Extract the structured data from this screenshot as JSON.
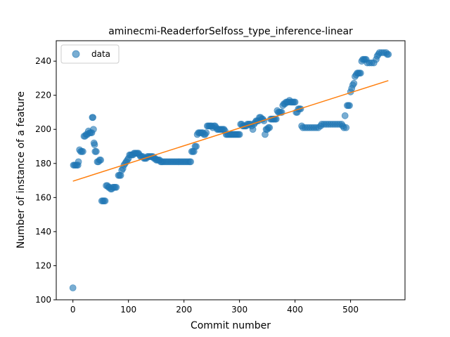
{
  "chart_data": {
    "type": "scatter",
    "title": "aminecmi-ReaderforSelfoss_type_inference-linear",
    "xlabel": "Commit number",
    "ylabel": "Number of instance of a feature",
    "xlim": [
      -30,
      598
    ],
    "ylim": [
      100,
      252
    ],
    "xticks": [
      0,
      100,
      200,
      300,
      400,
      500
    ],
    "yticks": [
      100,
      120,
      140,
      160,
      180,
      200,
      220,
      240
    ],
    "legend": {
      "position": "top-left",
      "entries": [
        "data"
      ]
    },
    "colors": {
      "data": "#1f77b4",
      "fit": "#ff7f0e"
    },
    "series": [
      {
        "name": "data",
        "marker": "circle",
        "alpha": 0.6,
        "points": [
          [
            0,
            107
          ],
          [
            1,
            179
          ],
          [
            3,
            179
          ],
          [
            5,
            179
          ],
          [
            7,
            179
          ],
          [
            9,
            179
          ],
          [
            10,
            181
          ],
          [
            12,
            188
          ],
          [
            14,
            187
          ],
          [
            16,
            187
          ],
          [
            18,
            187
          ],
          [
            20,
            196
          ],
          [
            22,
            196
          ],
          [
            24,
            197
          ],
          [
            26,
            197
          ],
          [
            28,
            199
          ],
          [
            30,
            198
          ],
          [
            32,
            198
          ],
          [
            34,
            198
          ],
          [
            35,
            207
          ],
          [
            36,
            207
          ],
          [
            37,
            200
          ],
          [
            38,
            192
          ],
          [
            39,
            191
          ],
          [
            40,
            187
          ],
          [
            42,
            187
          ],
          [
            44,
            181
          ],
          [
            46,
            181
          ],
          [
            48,
            182
          ],
          [
            50,
            182
          ],
          [
            52,
            158
          ],
          [
            54,
            158
          ],
          [
            56,
            158
          ],
          [
            58,
            158
          ],
          [
            60,
            167
          ],
          [
            62,
            167
          ],
          [
            64,
            166
          ],
          [
            66,
            166
          ],
          [
            68,
            165
          ],
          [
            70,
            165
          ],
          [
            72,
            166
          ],
          [
            74,
            166
          ],
          [
            76,
            166
          ],
          [
            78,
            166
          ],
          [
            82,
            173
          ],
          [
            84,
            173
          ],
          [
            86,
            173
          ],
          [
            88,
            176
          ],
          [
            90,
            177
          ],
          [
            92,
            179
          ],
          [
            94,
            180
          ],
          [
            96,
            181
          ],
          [
            98,
            182
          ],
          [
            100,
            183
          ],
          [
            102,
            185
          ],
          [
            104,
            185
          ],
          [
            106,
            185
          ],
          [
            108,
            185
          ],
          [
            110,
            186
          ],
          [
            112,
            186
          ],
          [
            114,
            186
          ],
          [
            116,
            186
          ],
          [
            118,
            186
          ],
          [
            120,
            185
          ],
          [
            122,
            184
          ],
          [
            124,
            184
          ],
          [
            126,
            184
          ],
          [
            128,
            183
          ],
          [
            130,
            183
          ],
          [
            132,
            183
          ],
          [
            134,
            184
          ],
          [
            136,
            184
          ],
          [
            138,
            184
          ],
          [
            140,
            184
          ],
          [
            142,
            184
          ],
          [
            144,
            184
          ],
          [
            146,
            183
          ],
          [
            148,
            183
          ],
          [
            150,
            182
          ],
          [
            152,
            182
          ],
          [
            154,
            182
          ],
          [
            156,
            182
          ],
          [
            158,
            181
          ],
          [
            160,
            181
          ],
          [
            162,
            181
          ],
          [
            165,
            181
          ],
          [
            168,
            181
          ],
          [
            171,
            181
          ],
          [
            174,
            181
          ],
          [
            177,
            181
          ],
          [
            180,
            181
          ],
          [
            183,
            181
          ],
          [
            186,
            181
          ],
          [
            189,
            181
          ],
          [
            192,
            181
          ],
          [
            195,
            181
          ],
          [
            198,
            181
          ],
          [
            201,
            181
          ],
          [
            204,
            181
          ],
          [
            207,
            181
          ],
          [
            210,
            181
          ],
          [
            212,
            181
          ],
          [
            214,
            187
          ],
          [
            216,
            187
          ],
          [
            218,
            187
          ],
          [
            220,
            190
          ],
          [
            222,
            190
          ],
          [
            224,
            197
          ],
          [
            226,
            198
          ],
          [
            228,
            198
          ],
          [
            230,
            198
          ],
          [
            232,
            198
          ],
          [
            234,
            198
          ],
          [
            236,
            197
          ],
          [
            238,
            197
          ],
          [
            240,
            198
          ],
          [
            242,
            202
          ],
          [
            244,
            202
          ],
          [
            246,
            202
          ],
          [
            248,
            202
          ],
          [
            250,
            202
          ],
          [
            252,
            201
          ],
          [
            254,
            202
          ],
          [
            256,
            202
          ],
          [
            258,
            201
          ],
          [
            260,
            200
          ],
          [
            262,
            200
          ],
          [
            264,
            200
          ],
          [
            266,
            200
          ],
          [
            268,
            200
          ],
          [
            270,
            200
          ],
          [
            272,
            200
          ],
          [
            274,
            199
          ],
          [
            276,
            197
          ],
          [
            278,
            197
          ],
          [
            280,
            197
          ],
          [
            282,
            197
          ],
          [
            284,
            197
          ],
          [
            286,
            197
          ],
          [
            288,
            197
          ],
          [
            290,
            197
          ],
          [
            292,
            197
          ],
          [
            294,
            197
          ],
          [
            296,
            197
          ],
          [
            298,
            197
          ],
          [
            300,
            197
          ],
          [
            302,
            203
          ],
          [
            304,
            203
          ],
          [
            306,
            202
          ],
          [
            308,
            202
          ],
          [
            310,
            202
          ],
          [
            312,
            202
          ],
          [
            314,
            203
          ],
          [
            316,
            203
          ],
          [
            318,
            203
          ],
          [
            320,
            203
          ],
          [
            322,
            202
          ],
          [
            324,
            200
          ],
          [
            326,
            203
          ],
          [
            328,
            204
          ],
          [
            330,
            205
          ],
          [
            332,
            205
          ],
          [
            334,
            205
          ],
          [
            336,
            207
          ],
          [
            338,
            207
          ],
          [
            340,
            206
          ],
          [
            342,
            206
          ],
          [
            344,
            205
          ],
          [
            346,
            197
          ],
          [
            348,
            200
          ],
          [
            350,
            200
          ],
          [
            352,
            201
          ],
          [
            354,
            201
          ],
          [
            356,
            206
          ],
          [
            358,
            206
          ],
          [
            360,
            206
          ],
          [
            362,
            206
          ],
          [
            364,
            206
          ],
          [
            366,
            206
          ],
          [
            368,
            211
          ],
          [
            370,
            210
          ],
          [
            372,
            210
          ],
          [
            374,
            210
          ],
          [
            376,
            210
          ],
          [
            378,
            214
          ],
          [
            380,
            215
          ],
          [
            382,
            215
          ],
          [
            384,
            216
          ],
          [
            386,
            216
          ],
          [
            388,
            216
          ],
          [
            390,
            217
          ],
          [
            392,
            216
          ],
          [
            394,
            216
          ],
          [
            396,
            216
          ],
          [
            398,
            216
          ],
          [
            400,
            216
          ],
          [
            402,
            210
          ],
          [
            404,
            210
          ],
          [
            406,
            212
          ],
          [
            408,
            212
          ],
          [
            410,
            212
          ],
          [
            412,
            202
          ],
          [
            414,
            201
          ],
          [
            418,
            201
          ],
          [
            422,
            201
          ],
          [
            426,
            201
          ],
          [
            430,
            201
          ],
          [
            434,
            201
          ],
          [
            438,
            201
          ],
          [
            442,
            201
          ],
          [
            446,
            202
          ],
          [
            448,
            203
          ],
          [
            452,
            203
          ],
          [
            456,
            203
          ],
          [
            460,
            203
          ],
          [
            464,
            203
          ],
          [
            468,
            203
          ],
          [
            472,
            203
          ],
          [
            476,
            203
          ],
          [
            480,
            203
          ],
          [
            484,
            203
          ],
          [
            486,
            202
          ],
          [
            488,
            201
          ],
          [
            490,
            208
          ],
          [
            492,
            201
          ],
          [
            494,
            214
          ],
          [
            496,
            214
          ],
          [
            498,
            214
          ],
          [
            500,
            222
          ],
          [
            502,
            224
          ],
          [
            504,
            226
          ],
          [
            506,
            227
          ],
          [
            508,
            231
          ],
          [
            510,
            232
          ],
          [
            512,
            233
          ],
          [
            514,
            233
          ],
          [
            516,
            233
          ],
          [
            518,
            233
          ],
          [
            520,
            240
          ],
          [
            522,
            241
          ],
          [
            524,
            241
          ],
          [
            526,
            241
          ],
          [
            528,
            241
          ],
          [
            530,
            239
          ],
          [
            534,
            239
          ],
          [
            538,
            239
          ],
          [
            542,
            239
          ],
          [
            546,
            241
          ],
          [
            548,
            243
          ],
          [
            550,
            244
          ],
          [
            552,
            245
          ],
          [
            556,
            245
          ],
          [
            560,
            245
          ],
          [
            564,
            245
          ],
          [
            566,
            244
          ],
          [
            568,
            244
          ]
        ]
      },
      {
        "name": "",
        "type": "line",
        "points": [
          [
            0,
            169.6
          ],
          [
            568,
            228.6
          ]
        ]
      }
    ]
  }
}
